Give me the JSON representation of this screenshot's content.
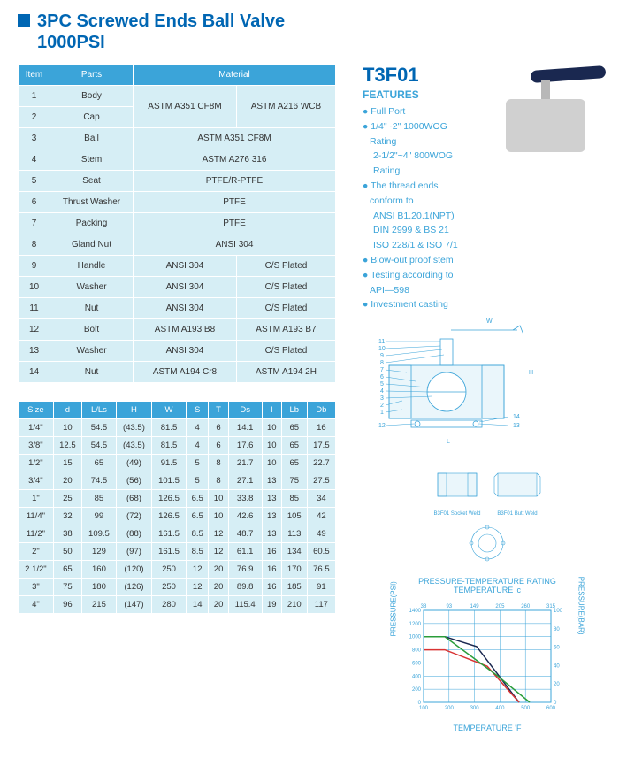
{
  "title_line1": "3PC Screwed Ends Ball Valve",
  "title_line2": "1000PSI",
  "model": "T3F01",
  "features_heading": "FEATURES",
  "features": [
    {
      "t": "● Full Port"
    },
    {
      "t": "● 1/4\"~2\" 1000WOG Rating"
    },
    {
      "t": "2-1/2\"~4\" 800WOG Rating",
      "sub": true
    },
    {
      "t": "● The thread ends conform to"
    },
    {
      "t": "ANSI B1.20.1(NPT)",
      "sub": true
    },
    {
      "t": "DIN 2999 & BS 21",
      "sub": true
    },
    {
      "t": "ISO 228/1 & ISO 7/1",
      "sub": true
    },
    {
      "t": "● Blow-out proof stem"
    },
    {
      "t": "● Testing according to API—598"
    },
    {
      "t": "● Investment casting"
    }
  ],
  "mat_headers": [
    "Item",
    "Parts",
    "Material"
  ],
  "mat_rows": [
    {
      "n": "1",
      "p": "Body",
      "m": [
        "ASTM A351 CF8M",
        "ASTM A216 WCB"
      ],
      "span": 2
    },
    {
      "n": "2",
      "p": "Cap"
    },
    {
      "n": "3",
      "p": "Ball",
      "m": [
        "ASTM A351 CF8M"
      ]
    },
    {
      "n": "4",
      "p": "Stem",
      "m": [
        "ASTM A276 316"
      ]
    },
    {
      "n": "5",
      "p": "Seat",
      "m": [
        "PTFE/R-PTFE"
      ]
    },
    {
      "n": "6",
      "p": "Thrust Washer",
      "m": [
        "PTFE"
      ]
    },
    {
      "n": "7",
      "p": "Packing",
      "m": [
        "PTFE"
      ]
    },
    {
      "n": "8",
      "p": "Gland Nut",
      "m": [
        "ANSI 304"
      ]
    },
    {
      "n": "9",
      "p": "Handle",
      "m": [
        "ANSI 304",
        "C/S Plated"
      ]
    },
    {
      "n": "10",
      "p": "Washer",
      "m": [
        "ANSI 304",
        "C/S Plated"
      ]
    },
    {
      "n": "11",
      "p": "Nut",
      "m": [
        "ANSI 304",
        "C/S Plated"
      ]
    },
    {
      "n": "12",
      "p": "Bolt",
      "m": [
        "ASTM A193 B8",
        "ASTM A193 B7"
      ]
    },
    {
      "n": "13",
      "p": "Washer",
      "m": [
        "ANSI 304",
        "C/S Plated"
      ]
    },
    {
      "n": "14",
      "p": "Nut",
      "m": [
        "ASTM A194 Cr8",
        "ASTM A194 2H"
      ]
    }
  ],
  "dim_headers": [
    "Size",
    "d",
    "L/Ls",
    "H",
    "W",
    "S",
    "T",
    "Ds",
    "I",
    "Lb",
    "Db"
  ],
  "dim_rows": [
    [
      "1/4\"",
      "10",
      "54.5",
      "(43.5)",
      "81.5",
      "4",
      "6",
      "14.1",
      "10",
      "65",
      "16"
    ],
    [
      "3/8\"",
      "12.5",
      "54.5",
      "(43.5)",
      "81.5",
      "4",
      "6",
      "17.6",
      "10",
      "65",
      "17.5"
    ],
    [
      "1/2\"",
      "15",
      "65",
      "(49)",
      "91.5",
      "5",
      "8",
      "21.7",
      "10",
      "65",
      "22.7"
    ],
    [
      "3/4\"",
      "20",
      "74.5",
      "(56)",
      "101.5",
      "5",
      "8",
      "27.1",
      "13",
      "75",
      "27.5"
    ],
    [
      "1\"",
      "25",
      "85",
      "(68)",
      "126.5",
      "6.5",
      "10",
      "33.8",
      "13",
      "85",
      "34"
    ],
    [
      "11/4\"",
      "32",
      "99",
      "(72)",
      "126.5",
      "6.5",
      "10",
      "42.6",
      "13",
      "105",
      "42"
    ],
    [
      "11/2\"",
      "38",
      "109.5",
      "(88)",
      "161.5",
      "8.5",
      "12",
      "48.7",
      "13",
      "113",
      "49"
    ],
    [
      "2\"",
      "50",
      "129",
      "(97)",
      "161.5",
      "8.5",
      "12",
      "61.1",
      "16",
      "134",
      "60.5"
    ],
    [
      "2 1/2\"",
      "65",
      "160",
      "(120)",
      "250",
      "12",
      "20",
      "76.9",
      "16",
      "170",
      "76.5"
    ],
    [
      "3\"",
      "75",
      "180",
      "(126)",
      "250",
      "12",
      "20",
      "89.8",
      "16",
      "185",
      "91"
    ],
    [
      "4\"",
      "96",
      "215",
      "(147)",
      "280",
      "14",
      "20",
      "115.4",
      "19",
      "210",
      "117"
    ]
  ],
  "chart": {
    "title1": "PRESSURE-TEMPERATURE RATING",
    "title2": "TEMPERATURE 'c",
    "xlabel": "TEMPERATURE 'F",
    "ylabel_l": "PRESSURE(PSI)",
    "ylabel_r": "PRESSURE(BAR)",
    "x_ticks_top": [
      "38",
      "93",
      "149",
      "205",
      "260",
      "315"
    ],
    "x_ticks_bot": [
      "100",
      "200",
      "300",
      "400",
      "500",
      "600"
    ],
    "y_ticks_l": [
      "1400",
      "1200",
      "1000",
      "800",
      "600",
      "400",
      "200",
      "0"
    ],
    "y_ticks_r": [
      "100",
      "80",
      "60",
      "40",
      "20",
      "0"
    ],
    "grid_color": "#3ba4d9",
    "series": [
      {
        "color": "#1a2850",
        "pts": [
          [
            0,
            1000
          ],
          [
            100,
            1000
          ],
          [
            250,
            850
          ],
          [
            450,
            0
          ]
        ]
      },
      {
        "color": "#d93333",
        "pts": [
          [
            0,
            800
          ],
          [
            100,
            800
          ],
          [
            300,
            550
          ],
          [
            450,
            0
          ]
        ]
      },
      {
        "color": "#2a9d3a",
        "pts": [
          [
            0,
            1000
          ],
          [
            100,
            1000
          ],
          [
            350,
            400
          ],
          [
            500,
            0
          ]
        ]
      }
    ],
    "xrange": [
      0,
      600
    ],
    "yrange": [
      0,
      1400
    ]
  },
  "dwg_labels": {
    "w": "W",
    "h": "H",
    "l": "L"
  },
  "small_labels": [
    "B3F01 Socket Weld",
    "B3F01 Butt Weld"
  ]
}
